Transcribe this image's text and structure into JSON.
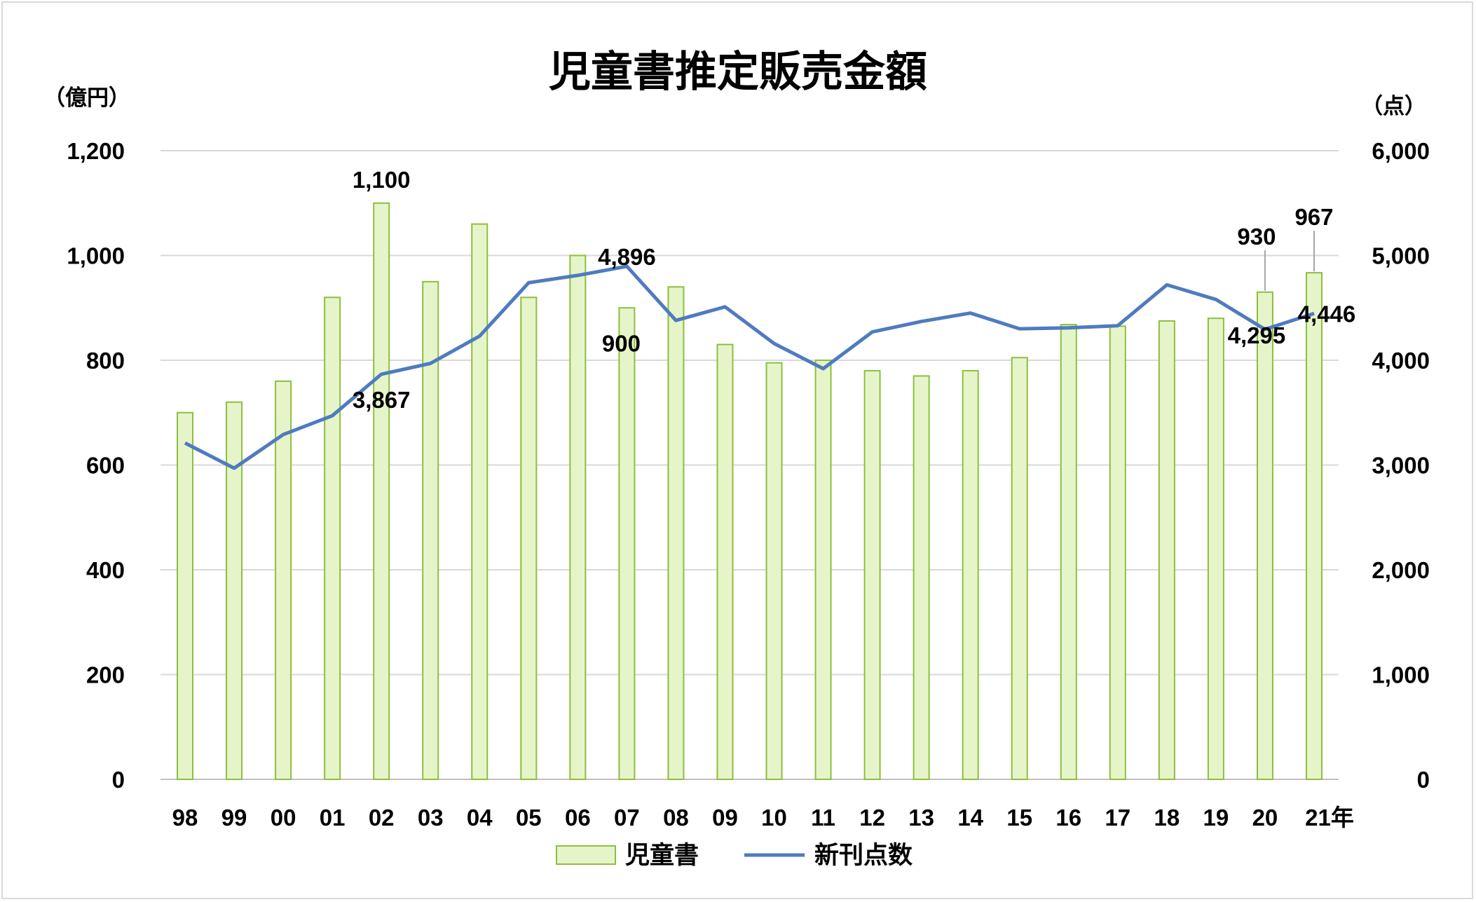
{
  "chart_data": {
    "type": "bar",
    "title": "児童書推定販売金額",
    "categories": [
      "98",
      "99",
      "00",
      "01",
      "02",
      "03",
      "04",
      "05",
      "06",
      "07",
      "08",
      "09",
      "10",
      "11",
      "12",
      "13",
      "14",
      "15",
      "16",
      "17",
      "18",
      "19",
      "20",
      "21年"
    ],
    "left_unit": "（億円）",
    "right_unit": "（点）",
    "left_ylim": [
      0,
      1200
    ],
    "left_ticks": [
      "0",
      "200",
      "400",
      "600",
      "800",
      "1,000",
      "1,200"
    ],
    "right_ylim": [
      0,
      6000
    ],
    "right_ticks": [
      "0",
      "1,000",
      "2,000",
      "3,000",
      "4,000",
      "5,000",
      "6,000"
    ],
    "grid": true,
    "legend_position": "bottom",
    "bar_color": "#e6f5c9",
    "bar_border": "#8cbf3f",
    "line_color": "#4f7bbf",
    "series": [
      {
        "name": "児童書",
        "type": "bar",
        "axis": "left",
        "values": [
          700,
          720,
          760,
          920,
          1100,
          950,
          1060,
          920,
          1000,
          900,
          940,
          830,
          795,
          800,
          780,
          770,
          780,
          805,
          868,
          865,
          875,
          880,
          930,
          967
        ]
      },
      {
        "name": "新刊点数",
        "type": "line",
        "axis": "right",
        "values": [
          3210,
          2970,
          3290,
          3470,
          3867,
          3970,
          4230,
          4740,
          4810,
          4896,
          4380,
          4510,
          4160,
          3920,
          4270,
          4370,
          4450,
          4300,
          4310,
          4330,
          4720,
          4580,
          4295,
          4446
        ]
      }
    ],
    "annotations": [
      {
        "series": 0,
        "index": 4,
        "text": "1,100"
      },
      {
        "series": 0,
        "index": 9,
        "text": "900"
      },
      {
        "series": 0,
        "index": 22,
        "text": "930"
      },
      {
        "series": 0,
        "index": 23,
        "text": "967"
      },
      {
        "series": 1,
        "index": 4,
        "text": "3,867"
      },
      {
        "series": 1,
        "index": 9,
        "text": "4,896"
      },
      {
        "series": 1,
        "index": 22,
        "text": "4,295"
      },
      {
        "series": 1,
        "index": 23,
        "text": "4,446"
      }
    ]
  }
}
